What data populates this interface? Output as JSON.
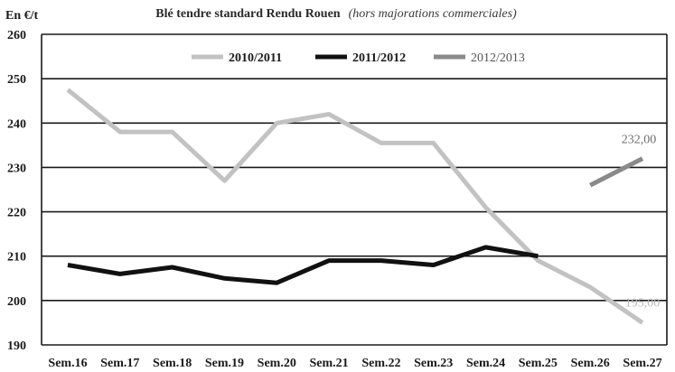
{
  "chart_data": {
    "type": "line",
    "title": "Blé tendre standard Rendu Rouen",
    "subtitle": "(hors majorations commerciales)",
    "ylabel": "En €/t",
    "xlabel": "",
    "ylim": [
      190,
      260
    ],
    "yticks": [
      "190",
      "200",
      "210",
      "220",
      "230",
      "240",
      "250",
      "260"
    ],
    "grid": true,
    "legend_position": "top",
    "categories": [
      "Sem.16",
      "Sem.17",
      "Sem.18",
      "Sem.19",
      "Sem.20",
      "Sem.21",
      "Sem.22",
      "Sem.23",
      "Sem.24",
      "Sem.25",
      "Sem.26",
      "Sem.27"
    ],
    "series": [
      {
        "name": "2010/2011",
        "color": "#c2c2c2",
        "values": [
          247.5,
          238,
          238,
          227,
          240,
          242,
          235.5,
          235.5,
          221,
          209,
          203,
          195
        ]
      },
      {
        "name": "2011/2012",
        "color": "#111111",
        "values": [
          208,
          206,
          207.5,
          205,
          204,
          209,
          209,
          208,
          212,
          210,
          null,
          null
        ]
      },
      {
        "name": "2012/2013",
        "color": "#8a8a8a",
        "values": [
          null,
          null,
          null,
          null,
          null,
          null,
          null,
          null,
          null,
          null,
          226,
          232
        ]
      }
    ],
    "annotations": [
      {
        "text": "232,00",
        "series": "2012/2013",
        "category": "Sem.27",
        "color": "#6e6e6e"
      },
      {
        "text": "195,00",
        "series": "2010/2011",
        "category": "Sem.27",
        "color": "#b8b8b8"
      }
    ]
  }
}
